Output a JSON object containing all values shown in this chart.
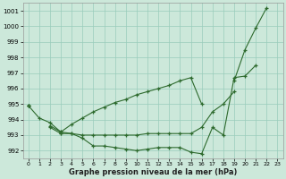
{
  "x": [
    0,
    1,
    2,
    3,
    4,
    5,
    6,
    7,
    8,
    9,
    10,
    11,
    12,
    13,
    14,
    15,
    16,
    17,
    18,
    19,
    20,
    21,
    22,
    23
  ],
  "line1_y": [
    994.9,
    994.1,
    993.8,
    993.2,
    993.1,
    992.8,
    992.3,
    992.3,
    992.2,
    992.1,
    992.0,
    992.1,
    992.2,
    992.2,
    992.2,
    991.9,
    991.8,
    993.5,
    993.0,
    996.7,
    996.8,
    997.5,
    null,
    null
  ],
  "line2_y": [
    994.9,
    null,
    993.5,
    993.1,
    993.1,
    993.0,
    993.0,
    993.0,
    993.0,
    993.0,
    993.0,
    993.1,
    993.1,
    993.1,
    993.1,
    993.1,
    993.5,
    994.5,
    995.0,
    995.8,
    null,
    null,
    null,
    null
  ],
  "line3_y": [
    994.9,
    null,
    993.6,
    993.2,
    993.7,
    994.1,
    994.5,
    994.8,
    995.1,
    995.3,
    995.6,
    995.8,
    996.0,
    996.2,
    996.5,
    996.7,
    995.0,
    null,
    null,
    null,
    null,
    null,
    null,
    null
  ],
  "line4_y": [
    994.9,
    null,
    null,
    993.1,
    null,
    null,
    null,
    null,
    null,
    null,
    null,
    null,
    null,
    null,
    null,
    null,
    null,
    null,
    null,
    996.5,
    998.5,
    999.9,
    1001.2,
    null
  ],
  "background_color": "#cce8da",
  "grid_color": "#99ccbb",
  "line_color": "#2d6a2d",
  "title": "Graphe pression niveau de la mer (hPa)",
  "ylim": [
    991.5,
    1001.5
  ],
  "yticks": [
    992,
    993,
    994,
    995,
    996,
    997,
    998,
    999,
    1000,
    1001
  ],
  "xticks": [
    0,
    1,
    2,
    3,
    4,
    5,
    6,
    7,
    8,
    9,
    10,
    11,
    12,
    13,
    14,
    15,
    16,
    17,
    18,
    19,
    20,
    21,
    22,
    23
  ],
  "figw": 3.2,
  "figh": 2.0,
  "dpi": 100
}
